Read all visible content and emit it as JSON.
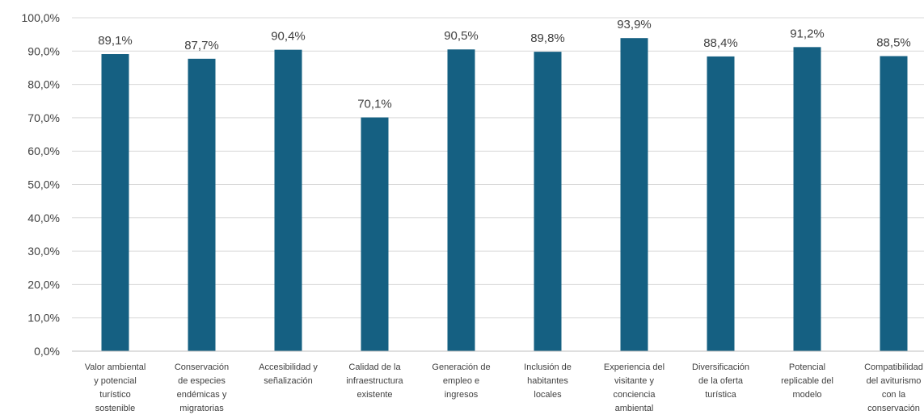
{
  "chart_data": {
    "type": "bar",
    "categories": [
      [
        "Valor ambiental",
        "y potencial",
        "turístico",
        "sostenible"
      ],
      [
        "Conservación",
        "de especies",
        "endémicas y",
        "migratorias"
      ],
      [
        "Accesibilidad y",
        "señalización"
      ],
      [
        "Calidad de la",
        "infraestructura",
        "existente"
      ],
      [
        "Generación de",
        "empleo e",
        "ingresos"
      ],
      [
        "Inclusión de",
        "habitantes",
        "locales"
      ],
      [
        "Experiencia del",
        "visitante y",
        "conciencia",
        "ambiental"
      ],
      [
        "Diversificación",
        "de la oferta",
        "turística"
      ],
      [
        "Potencial",
        "replicable del",
        "modelo"
      ],
      [
        "Compatibilidad",
        "del aviturismo",
        "con la",
        "conservación"
      ]
    ],
    "values": [
      89.1,
      87.7,
      90.4,
      70.1,
      90.5,
      89.8,
      93.9,
      88.4,
      91.2,
      88.5
    ],
    "value_labels": [
      "89,1%",
      "87,7%",
      "90,4%",
      "70,1%",
      "90,5%",
      "89,8%",
      "93,9%",
      "88,4%",
      "91,2%",
      "88,5%"
    ],
    "y_ticks": [
      0,
      10,
      20,
      30,
      40,
      50,
      60,
      70,
      80,
      90,
      100
    ],
    "y_tick_labels": [
      "0,0%",
      "10,0%",
      "20,0%",
      "30,0%",
      "40,0%",
      "50,0%",
      "60,0%",
      "70,0%",
      "80,0%",
      "90,0%",
      "100,0%"
    ],
    "ylim": [
      0,
      100
    ],
    "grid": true,
    "bar_color": "#156082",
    "title": "",
    "xlabel": "",
    "ylabel": ""
  }
}
